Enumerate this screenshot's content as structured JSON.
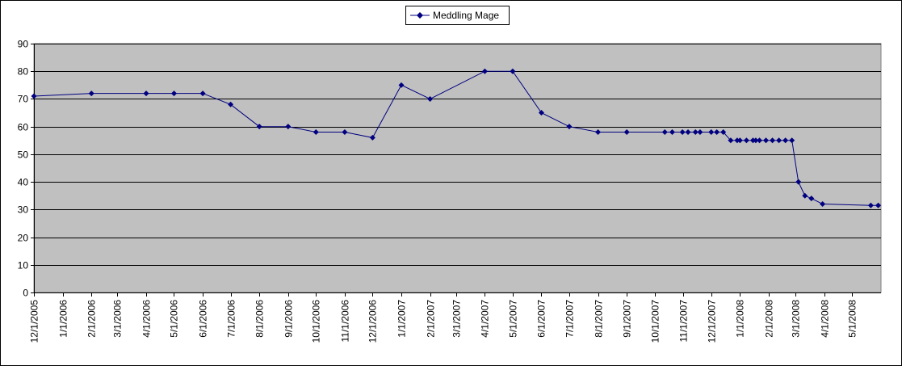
{
  "chart_data": {
    "type": "line",
    "title": "",
    "xlabel": "",
    "ylabel": "",
    "ylim": [
      0,
      90
    ],
    "yticks": [
      0,
      10,
      20,
      30,
      40,
      50,
      60,
      70,
      80,
      90
    ],
    "grid": true,
    "legend_position": "top-center",
    "colors": {
      "series": "#000080",
      "plot_background": "#c0c0c0",
      "gridline": "#000000"
    },
    "x_tick_labels": [
      "12/1/2005",
      "1/1/2006",
      "2/1/2006",
      "3/1/2006",
      "4/1/2006",
      "5/1/2006",
      "6/1/2006",
      "7/1/2006",
      "8/1/2006",
      "9/1/2006",
      "10/1/2006",
      "11/1/2006",
      "12/1/2006",
      "1/1/2007",
      "2/1/2007",
      "3/1/2007",
      "4/1/2007",
      "5/1/2007",
      "6/1/2007",
      "7/1/2007",
      "8/1/2007",
      "9/1/2007",
      "10/1/2007",
      "11/1/2007",
      "12/1/2007",
      "1/1/2008",
      "2/1/2008",
      "3/1/2008",
      "4/1/2008",
      "5/1/2008"
    ],
    "series": [
      {
        "name": "Meddling Mage",
        "x": [
          "2005-12-01",
          "2006-02-01",
          "2006-04-01",
          "2006-05-01",
          "2006-06-01",
          "2006-07-01",
          "2006-08-01",
          "2006-09-01",
          "2006-10-01",
          "2006-11-01",
          "2006-12-01",
          "2007-01-01",
          "2007-02-01",
          "2007-04-01",
          "2007-05-01",
          "2007-06-01",
          "2007-07-01",
          "2007-08-01",
          "2007-09-01",
          "2007-10-12",
          "2007-10-20",
          "2007-10-31",
          "2007-11-06",
          "2007-11-14",
          "2007-11-19",
          "2007-12-01",
          "2007-12-07",
          "2007-12-14",
          "2007-12-22",
          "2007-12-29",
          "2008-01-01",
          "2008-01-08",
          "2008-01-15",
          "2008-01-18",
          "2008-01-22",
          "2008-01-29",
          "2008-02-05",
          "2008-02-12",
          "2008-02-19",
          "2008-02-26",
          "2008-03-04",
          "2008-03-11",
          "2008-03-18",
          "2008-03-30",
          "2008-05-21",
          "2008-05-29"
        ],
        "values": [
          71,
          72,
          72,
          72,
          72,
          68,
          60,
          60,
          58,
          58,
          56,
          75,
          70,
          80,
          80,
          65,
          60,
          58,
          58,
          58,
          58,
          58,
          58,
          58,
          58,
          58,
          58,
          58,
          55,
          55,
          55,
          55,
          55,
          55,
          55,
          55,
          55,
          55,
          55,
          55,
          40,
          35,
          34,
          32,
          31.5,
          31.5
        ]
      }
    ]
  }
}
